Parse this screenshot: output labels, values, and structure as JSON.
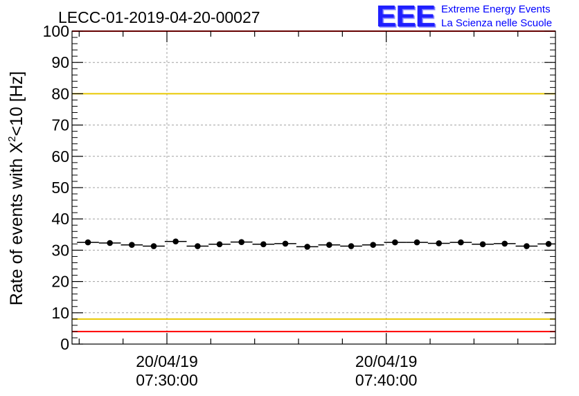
{
  "chart_data": {
    "type": "scatter",
    "title": "LECC-01-2019-04-20-00027",
    "ylabel_main": "Rate of events with X",
    "ylabel_sup": "2",
    "ylabel_tail": "<10 [Hz]",
    "ylim": [
      0,
      100
    ],
    "y_ticks": [
      "0",
      "10",
      "20",
      "30",
      "40",
      "50",
      "60",
      "70",
      "80",
      "90",
      "100"
    ],
    "x_ticks": [
      {
        "date": "20/04/19",
        "time": "07:30:00",
        "minutes": 0
      },
      {
        "date": "20/04/19",
        "time": "07:40:00",
        "minutes": 10
      }
    ],
    "xlim_minutes": [
      -4,
      17.8
    ],
    "grid": true,
    "series": [
      {
        "bin_width_minutes": 1,
        "x_minutes": [
          -3.6,
          -2.6,
          -1.6,
          -0.6,
          0.4,
          1.4,
          2.4,
          3.4,
          4.4,
          5.4,
          6.4,
          7.4,
          8.4,
          9.4,
          10.4,
          11.4,
          12.4,
          13.4,
          14.4,
          15.4,
          16.4,
          17.4
        ],
        "values": [
          32.5,
          32.3,
          31.7,
          31.3,
          32.8,
          31.3,
          31.9,
          32.6,
          31.9,
          32.1,
          31.1,
          31.7,
          31.3,
          31.7,
          32.5,
          32.5,
          32.2,
          32.5,
          31.9,
          32.1,
          31.3,
          32.0
        ]
      }
    ],
    "reference_lines": [
      {
        "y": 100,
        "color": "#ff0000"
      },
      {
        "y": 80,
        "color": "#e8c800"
      },
      {
        "y": 8,
        "color": "#e8c800"
      },
      {
        "y": 4,
        "color": "#ff0000"
      }
    ]
  },
  "logo": {
    "mark": "EEE",
    "line1": "Extreme Energy Events",
    "line2": "La Scienza nelle Scuole"
  }
}
